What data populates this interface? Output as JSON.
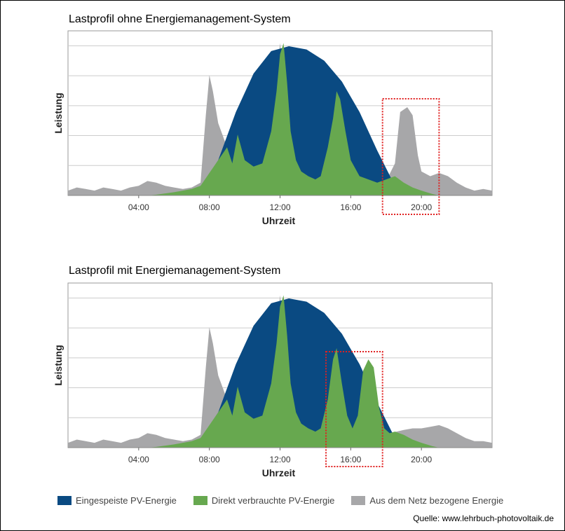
{
  "chart_data": [
    {
      "type": "area",
      "title": "Lastprofil ohne Energiemanagement-System",
      "xlabel": "Uhrzeit",
      "ylabel": "Leistung",
      "xlim": [
        0,
        24
      ],
      "ylim": [
        0,
        100
      ],
      "x_ticks": [
        "04:00",
        "08:00",
        "12:00",
        "16:00",
        "20:00"
      ],
      "x_tick_values": [
        4,
        8,
        12,
        16,
        20
      ],
      "grid": true,
      "series": [
        {
          "name": "Eingespeiste PV-Energie",
          "points": [
            [
              6.5,
              0
            ],
            [
              7.5,
              5
            ],
            [
              8.5,
              22
            ],
            [
              9.5,
              52
            ],
            [
              10.5,
              76
            ],
            [
              11.5,
              90
            ],
            [
              12.5,
              93
            ],
            [
              13.5,
              91
            ],
            [
              14.5,
              84
            ],
            [
              15.5,
              71
            ],
            [
              16.5,
              52
            ],
            [
              17.5,
              28
            ],
            [
              18.5,
              6
            ],
            [
              19.3,
              0
            ]
          ]
        },
        {
          "name": "Direkt verbrauchte PV-Energie",
          "points": [
            [
              4.5,
              0
            ],
            [
              5,
              0.5
            ],
            [
              6,
              2
            ],
            [
              7,
              4
            ],
            [
              7.5,
              6
            ],
            [
              8,
              14
            ],
            [
              8.5,
              22
            ],
            [
              9,
              30
            ],
            [
              9.3,
              20
            ],
            [
              9.6,
              38
            ],
            [
              10,
              22
            ],
            [
              10.5,
              18
            ],
            [
              11,
              20
            ],
            [
              11.5,
              40
            ],
            [
              11.8,
              65
            ],
            [
              12,
              88
            ],
            [
              12.2,
              95
            ],
            [
              12.4,
              70
            ],
            [
              12.6,
              40
            ],
            [
              12.9,
              22
            ],
            [
              13.2,
              15
            ],
            [
              13.6,
              12
            ],
            [
              14,
              10
            ],
            [
              14.3,
              12
            ],
            [
              14.7,
              30
            ],
            [
              15,
              48
            ],
            [
              15.2,
              65
            ],
            [
              15.4,
              60
            ],
            [
              15.7,
              40
            ],
            [
              16,
              22
            ],
            [
              16.5,
              12
            ],
            [
              17,
              10
            ],
            [
              17.5,
              8
            ],
            [
              18,
              10
            ],
            [
              18.5,
              12
            ],
            [
              19,
              8
            ],
            [
              19.5,
              5
            ],
            [
              20,
              3
            ],
            [
              20.6,
              1
            ],
            [
              21,
              0
            ]
          ]
        },
        {
          "name": "Aus dem Netz bezogene Energie",
          "points": [
            [
              0,
              3
            ],
            [
              0.5,
              5
            ],
            [
              1,
              4
            ],
            [
              1.5,
              3
            ],
            [
              2,
              5
            ],
            [
              2.5,
              4
            ],
            [
              3,
              3
            ],
            [
              3.5,
              5
            ],
            [
              4,
              6
            ],
            [
              4.5,
              9
            ],
            [
              5,
              8
            ],
            [
              5.5,
              6
            ],
            [
              6,
              5
            ],
            [
              6.5,
              4
            ],
            [
              7,
              5
            ],
            [
              7.5,
              8
            ],
            [
              7.8,
              50
            ],
            [
              8,
              75
            ],
            [
              8.2,
              65
            ],
            [
              8.5,
              45
            ],
            [
              9,
              30
            ],
            [
              9.5,
              35
            ],
            [
              10,
              22
            ],
            [
              10.5,
              15
            ],
            [
              11,
              20
            ],
            [
              11.5,
              40
            ],
            [
              11.8,
              70
            ],
            [
              12,
              95
            ],
            [
              12.2,
              75
            ],
            [
              12.6,
              40
            ],
            [
              13,
              20
            ],
            [
              14,
              10
            ],
            [
              15,
              10
            ],
            [
              16,
              10
            ],
            [
              17,
              10
            ],
            [
              18,
              9
            ],
            [
              18.5,
              20
            ],
            [
              18.8,
              52
            ],
            [
              19.2,
              55
            ],
            [
              19.5,
              50
            ],
            [
              19.8,
              25
            ],
            [
              20,
              15
            ],
            [
              20.5,
              12
            ],
            [
              21,
              14
            ],
            [
              21.5,
              12
            ],
            [
              22,
              8
            ],
            [
              22.5,
              5
            ],
            [
              23,
              3
            ],
            [
              23.5,
              4
            ],
            [
              24,
              3
            ]
          ]
        }
      ],
      "annotation": {
        "type": "dotted-box",
        "x_range": [
          17.8,
          21
        ]
      }
    },
    {
      "type": "area",
      "title": "Lastprofil mit Energiemanagement-System",
      "xlabel": "Uhrzeit",
      "ylabel": "Leistung",
      "xlim": [
        0,
        24
      ],
      "ylim": [
        0,
        100
      ],
      "x_ticks": [
        "04:00",
        "08:00",
        "12:00",
        "16:00",
        "20:00"
      ],
      "x_tick_values": [
        4,
        8,
        12,
        16,
        20
      ],
      "grid": true,
      "series": [
        {
          "name": "Eingespeiste PV-Energie",
          "points": [
            [
              6.5,
              0
            ],
            [
              7.5,
              5
            ],
            [
              8.5,
              22
            ],
            [
              9.5,
              52
            ],
            [
              10.5,
              76
            ],
            [
              11.5,
              90
            ],
            [
              12.5,
              93
            ],
            [
              13.5,
              91
            ],
            [
              14.5,
              84
            ],
            [
              15.5,
              71
            ],
            [
              16.5,
              52
            ],
            [
              17.5,
              28
            ],
            [
              18.5,
              6
            ],
            [
              19.3,
              0
            ]
          ]
        },
        {
          "name": "Direkt verbrauchte PV-Energie",
          "points": [
            [
              4.5,
              0
            ],
            [
              5,
              0.5
            ],
            [
              6,
              2
            ],
            [
              7,
              4
            ],
            [
              7.5,
              6
            ],
            [
              8,
              14
            ],
            [
              8.5,
              22
            ],
            [
              9,
              30
            ],
            [
              9.3,
              20
            ],
            [
              9.6,
              38
            ],
            [
              10,
              22
            ],
            [
              10.5,
              18
            ],
            [
              11,
              20
            ],
            [
              11.5,
              40
            ],
            [
              11.8,
              65
            ],
            [
              12,
              88
            ],
            [
              12.2,
              95
            ],
            [
              12.4,
              70
            ],
            [
              12.6,
              40
            ],
            [
              12.9,
              22
            ],
            [
              13.2,
              15
            ],
            [
              13.6,
              12
            ],
            [
              14,
              10
            ],
            [
              14.3,
              12
            ],
            [
              14.7,
              30
            ],
            [
              15,
              55
            ],
            [
              15.2,
              62
            ],
            [
              15.5,
              40
            ],
            [
              15.8,
              20
            ],
            [
              16.1,
              12
            ],
            [
              16.4,
              20
            ],
            [
              16.7,
              48
            ],
            [
              17,
              55
            ],
            [
              17.3,
              50
            ],
            [
              17.6,
              25
            ],
            [
              17.9,
              12
            ],
            [
              18.2,
              9
            ],
            [
              18.5,
              10
            ],
            [
              19,
              8
            ],
            [
              19.5,
              5
            ],
            [
              20,
              3
            ],
            [
              20.6,
              1
            ],
            [
              21,
              0
            ]
          ]
        },
        {
          "name": "Aus dem Netz bezogene Energie",
          "points": [
            [
              0,
              3
            ],
            [
              0.5,
              5
            ],
            [
              1,
              4
            ],
            [
              1.5,
              3
            ],
            [
              2,
              5
            ],
            [
              2.5,
              4
            ],
            [
              3,
              3
            ],
            [
              3.5,
              5
            ],
            [
              4,
              6
            ],
            [
              4.5,
              9
            ],
            [
              5,
              8
            ],
            [
              5.5,
              6
            ],
            [
              6,
              5
            ],
            [
              6.5,
              4
            ],
            [
              7,
              5
            ],
            [
              7.5,
              8
            ],
            [
              7.8,
              50
            ],
            [
              8,
              75
            ],
            [
              8.2,
              65
            ],
            [
              8.5,
              45
            ],
            [
              9,
              30
            ],
            [
              9.5,
              35
            ],
            [
              10,
              22
            ],
            [
              10.5,
              15
            ],
            [
              11,
              20
            ],
            [
              11.5,
              40
            ],
            [
              11.8,
              70
            ],
            [
              12,
              95
            ],
            [
              12.2,
              75
            ],
            [
              12.6,
              40
            ],
            [
              13,
              20
            ],
            [
              14,
              10
            ],
            [
              15,
              10
            ],
            [
              16,
              10
            ],
            [
              17,
              10
            ],
            [
              18,
              9
            ],
            [
              18.6,
              10
            ],
            [
              19,
              11
            ],
            [
              19.5,
              12
            ],
            [
              20,
              12
            ],
            [
              20.5,
              13
            ],
            [
              21,
              14
            ],
            [
              21.5,
              12
            ],
            [
              22,
              9
            ],
            [
              22.5,
              6
            ],
            [
              23,
              4
            ],
            [
              23.5,
              4
            ],
            [
              24,
              3
            ]
          ]
        }
      ],
      "annotation": {
        "type": "dotted-box",
        "x_range": [
          14.6,
          17.8
        ]
      }
    }
  ],
  "legend": [
    {
      "label": "Eingespeiste PV-Energie",
      "color": "#0a4a82"
    },
    {
      "label": "Direkt verbrauchte PV-Energie",
      "color": "#67a84f"
    },
    {
      "label": "Aus dem Netz bezogene Energie",
      "color": "#a7a7a9"
    }
  ],
  "colors": {
    "feed_in": "#0a4a82",
    "self_consumption": "#67a84f",
    "grid": "#a7a7a9",
    "gridline": "#cccccc",
    "annotation": "#e02020"
  },
  "source": "Quelle: www.lehrbuch-photovoltaik.de"
}
